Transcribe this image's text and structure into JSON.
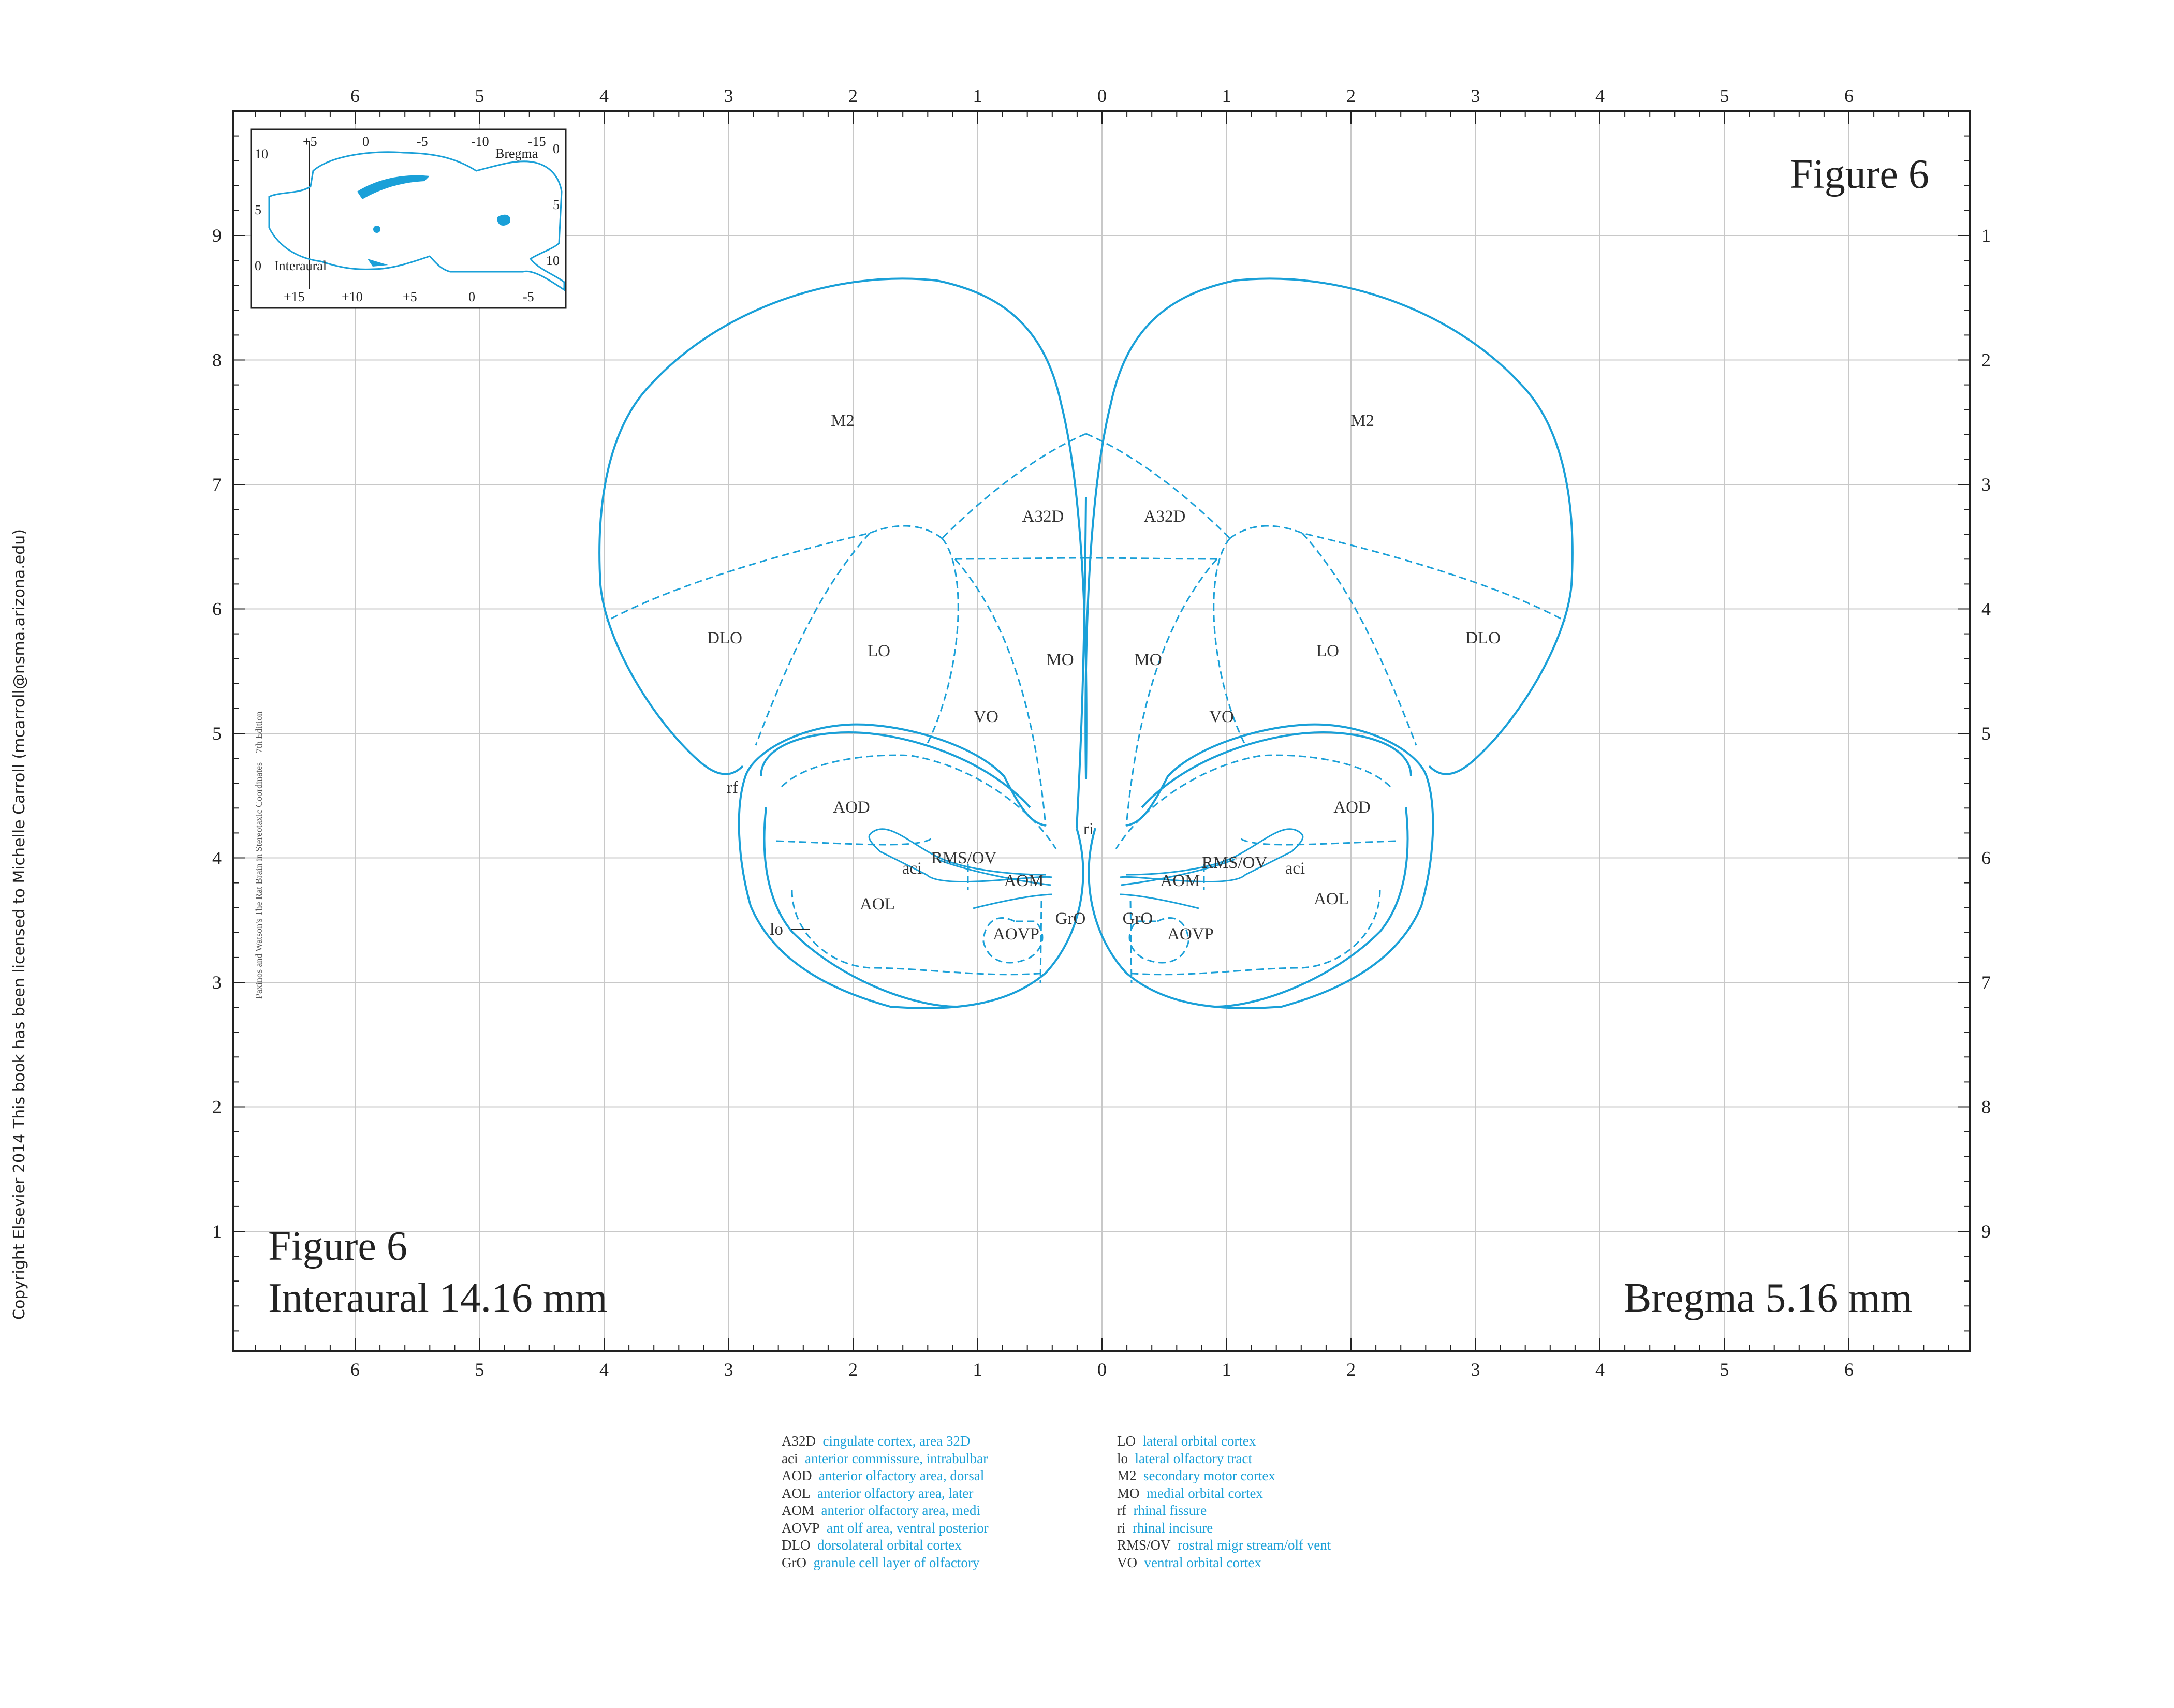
{
  "copyright": "Copyright Elsevier 2014 This book has been licensed to Michelle Carroll (mcarroll@nsma.arizona.edu)",
  "figure": {
    "title_top": "Figure 6",
    "title_bottom": "Figure 6",
    "interaural": "Interaural 14.16 mm",
    "bregma": "Bregma 5.16 mm",
    "edition_note": "Paxinos and Watson's The Rat Brain in Stereotaxic Coordinates    7th Edition"
  },
  "axes": {
    "top": [
      "6",
      "5",
      "4",
      "3",
      "2",
      "1",
      "0",
      "1",
      "2",
      "3",
      "4",
      "5",
      "6"
    ],
    "bottom": [
      "6",
      "5",
      "4",
      "3",
      "2",
      "1",
      "0",
      "1",
      "2",
      "3",
      "4",
      "5",
      "6"
    ],
    "left": [
      "9",
      "8",
      "7",
      "6",
      "5",
      "4",
      "3",
      "2",
      "1"
    ],
    "right": [
      "1",
      "2",
      "3",
      "4",
      "5",
      "6",
      "7",
      "8",
      "9"
    ]
  },
  "inset": {
    "top_ticks": [
      "+5",
      "0",
      "-5",
      "-10",
      "-15"
    ],
    "bottom_ticks": [
      "+15",
      "+10",
      "+5",
      "0",
      "-5"
    ],
    "left_ticks": [
      "10",
      "5",
      "0"
    ],
    "right_ticks": [
      "0",
      "5",
      "10"
    ],
    "bregma_label": "Bregma",
    "interaural_label": "Interaural"
  },
  "regions": {
    "m2_left": "M2",
    "m2_right": "M2",
    "a32d_left": "A32D",
    "a32d_right": "A32D",
    "dlo_left": "DLO",
    "dlo_right": "DLO",
    "lo_left": "LO",
    "lo_right": "LO",
    "mo_left": "MO",
    "mo_right": "MO",
    "vo_left": "VO",
    "vo_right": "VO",
    "aod_left": "AOD",
    "aod_right": "AOD",
    "rmsov_left": "RMS/OV",
    "rmsov_right": "RMS/OV",
    "aci_left": "aci",
    "aci_right": "aci",
    "aom_left": "AOM",
    "aom_right": "AOM",
    "aol_left": "AOL",
    "aol_right": "AOL",
    "gro_left": "GrO",
    "gro_right": "GrO",
    "aovp_left": "AOVP",
    "aovp_right": "AOVP",
    "rf": "rf",
    "ri": "ri",
    "lo_tract": "lo"
  },
  "legend_left": [
    {
      "abbr": "A32D",
      "desc": "cingulate cortex, area 32D"
    },
    {
      "abbr": "aci",
      "desc": "anterior commissure, intrabulbar"
    },
    {
      "abbr": "AOD",
      "desc": "anterior olfactory area, dorsal"
    },
    {
      "abbr": "AOL",
      "desc": "anterior olfactory area, later"
    },
    {
      "abbr": "AOM",
      "desc": "anterior olfactory area, medi"
    },
    {
      "abbr": "AOVP",
      "desc": "ant olf area, ventral posterior"
    },
    {
      "abbr": "DLO",
      "desc": "dorsolateral orbital cortex"
    },
    {
      "abbr": "GrO",
      "desc": "granule cell layer of olfactory"
    }
  ],
  "legend_right": [
    {
      "abbr": "LO",
      "desc": "lateral orbital cortex"
    },
    {
      "abbr": "lo",
      "desc": "lateral olfactory tract"
    },
    {
      "abbr": "M2",
      "desc": "secondary motor cortex"
    },
    {
      "abbr": "MO",
      "desc": "medial orbital cortex"
    },
    {
      "abbr": "rf",
      "desc": "rhinal fissure"
    },
    {
      "abbr": "ri",
      "desc": "rhinal incisure"
    },
    {
      "abbr": "RMS/OV",
      "desc": "rostral migr stream/olf vent"
    },
    {
      "abbr": "VO",
      "desc": "ventral orbital cortex"
    }
  ],
  "colors": {
    "atlas_line": "#1aa0d8",
    "grid": "#c8c8c8",
    "frame": "#222222"
  }
}
